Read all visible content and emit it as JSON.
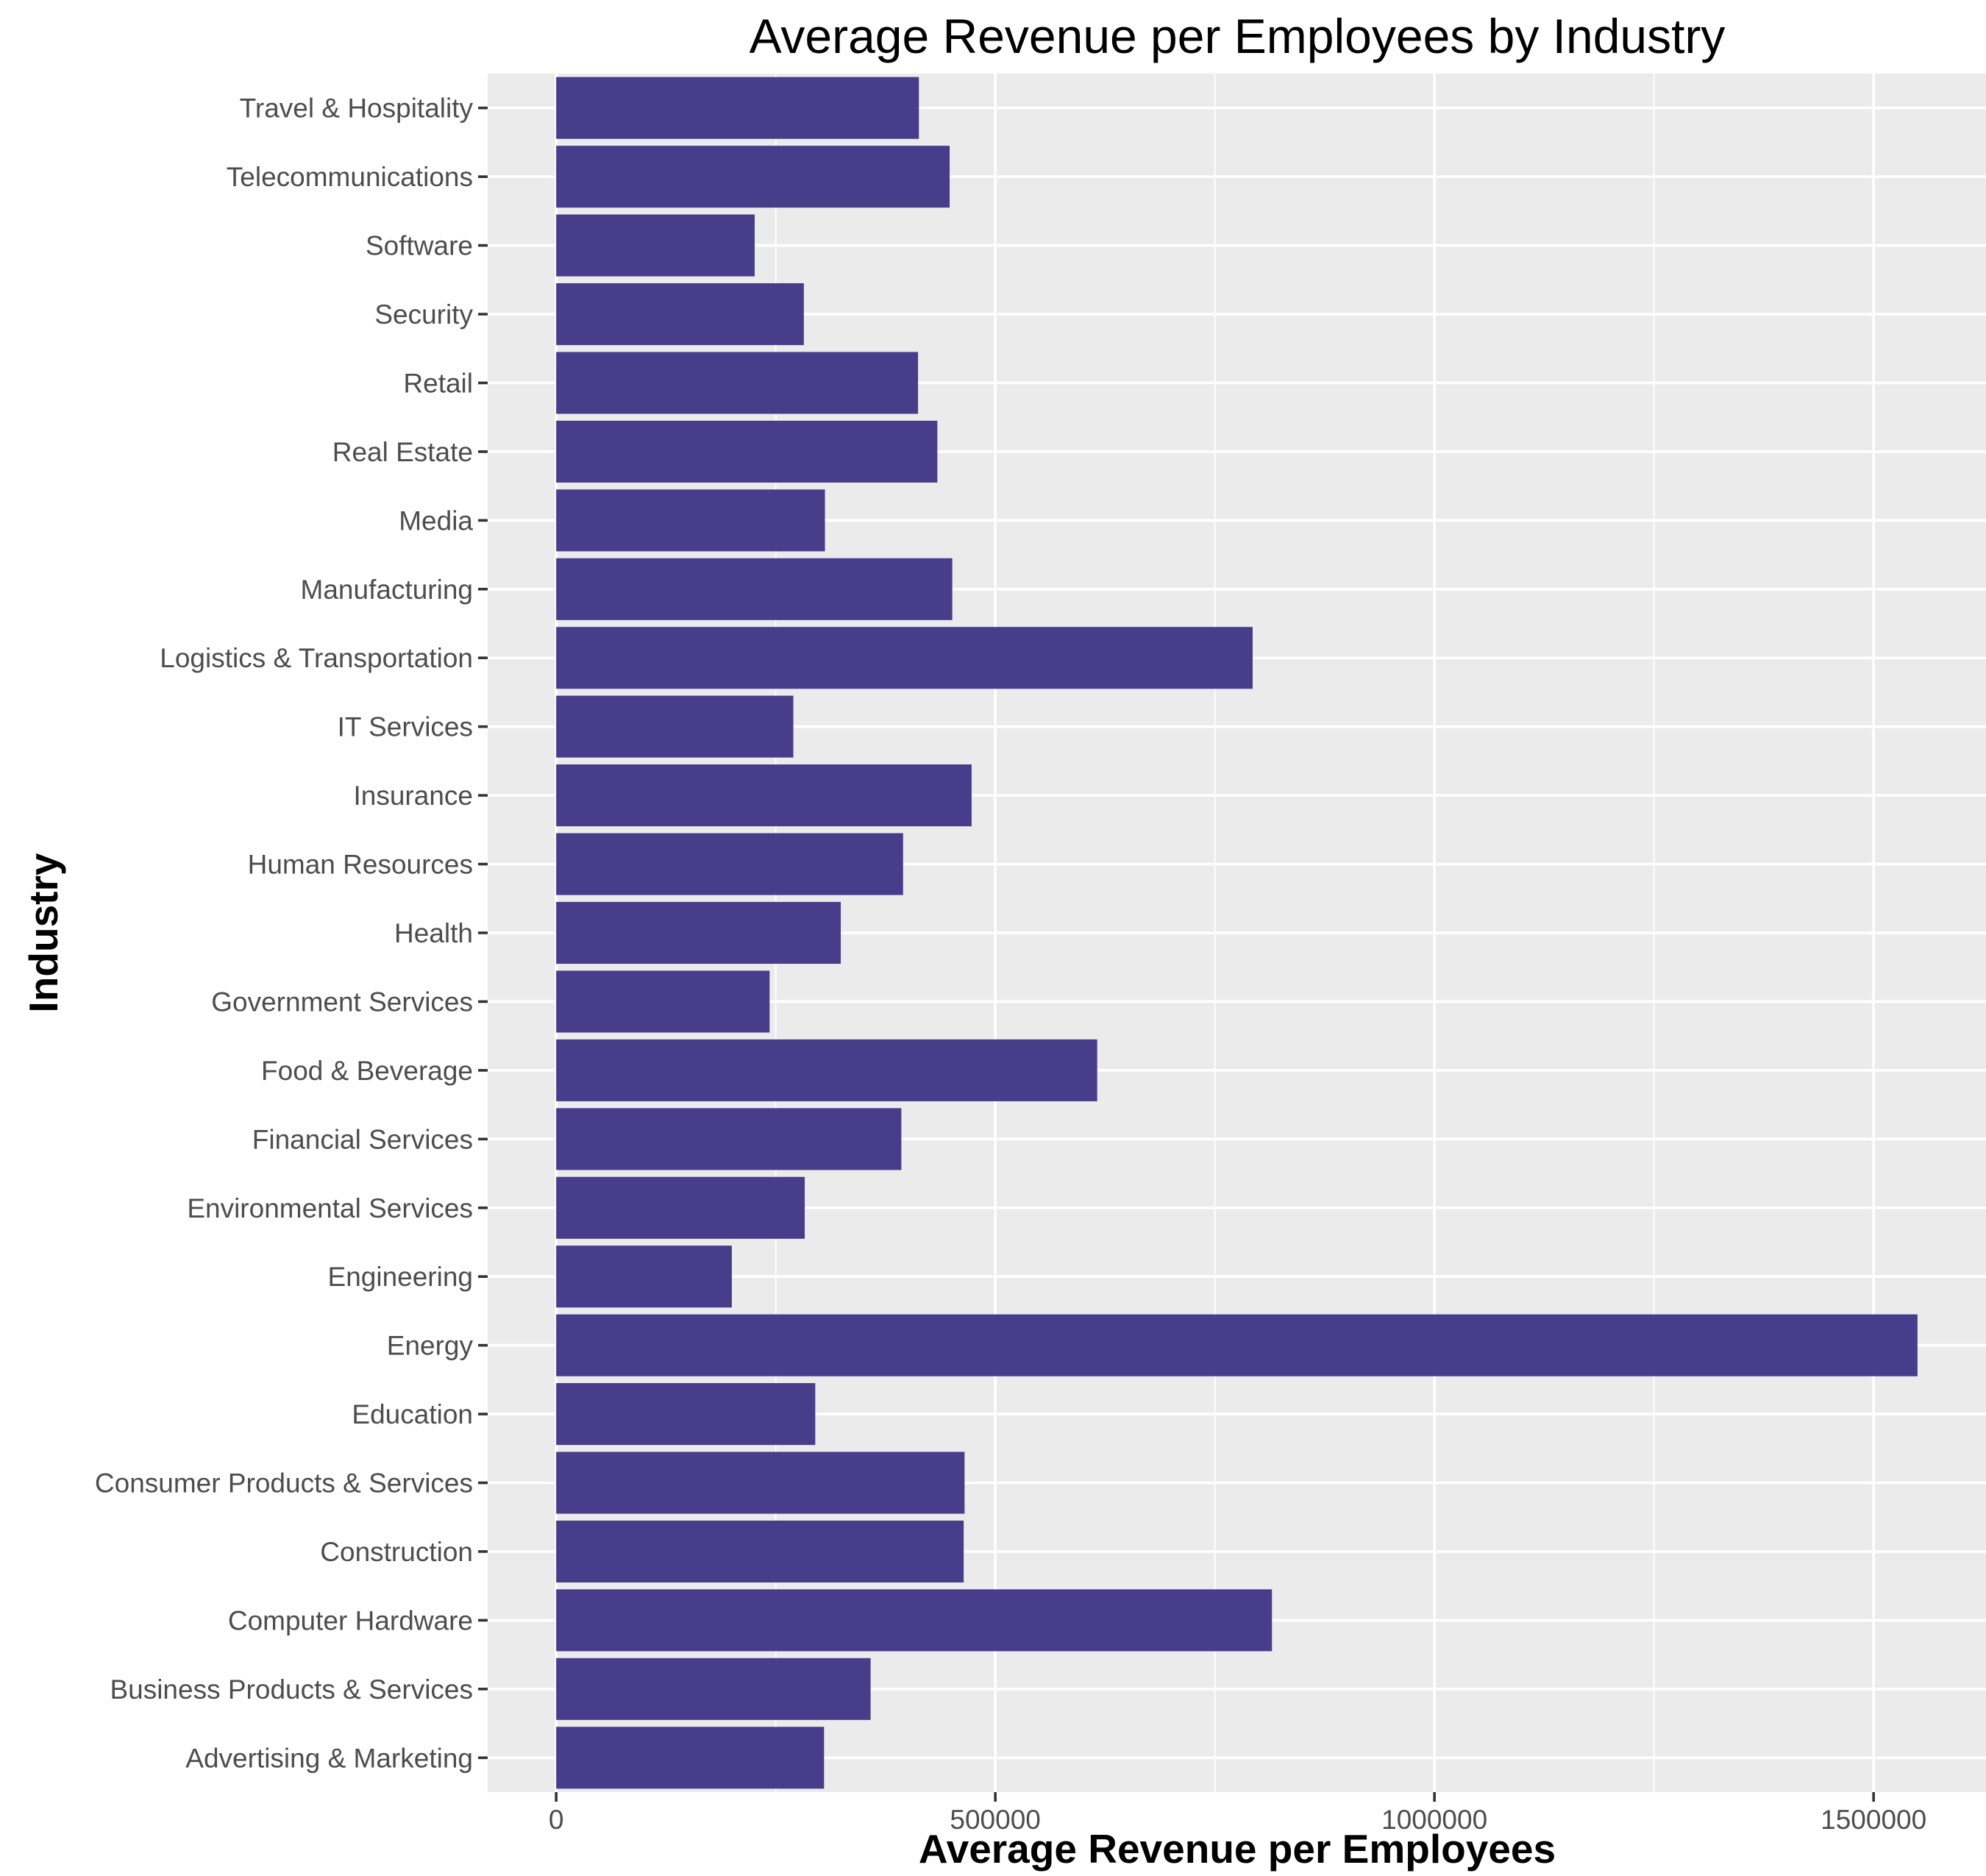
{
  "chart_data": {
    "type": "bar",
    "orientation": "horizontal",
    "title": "Average Revenue per Employees by Industry",
    "xlabel": "Average Revenue per Employees",
    "ylabel": "Industry",
    "categories": [
      "Advertising & Marketing",
      "Business Products & Services",
      "Computer Hardware",
      "Construction",
      "Consumer Products & Services",
      "Education",
      "Energy",
      "Engineering",
      "Environmental Services",
      "Financial Services",
      "Food & Beverage",
      "Government Services",
      "Health",
      "Human Resources",
      "Insurance",
      "IT Services",
      "Logistics & Transportation",
      "Manufacturing",
      "Media",
      "Real Estate",
      "Retail",
      "Security",
      "Software",
      "Telecommunications",
      "Travel & Hospitality"
    ],
    "values": [
      305000,
      358000,
      815000,
      464000,
      465000,
      295000,
      1550000,
      200000,
      283000,
      393000,
      616000,
      243000,
      324000,
      395000,
      473000,
      270000,
      793000,
      451000,
      306000,
      434000,
      412000,
      282000,
      226000,
      448000,
      413000
    ],
    "xlim": [
      -78000,
      1628000
    ],
    "xticks": [
      0,
      500000,
      1000000,
      1500000
    ],
    "xtick_labels": [
      "0",
      "500000",
      "1000000",
      "1500000"
    ],
    "grid": true,
    "bar_color": "#483D8B",
    "panel_background": "#EBEBEB",
    "grid_color": "#FFFFFF",
    "legend": "none"
  }
}
